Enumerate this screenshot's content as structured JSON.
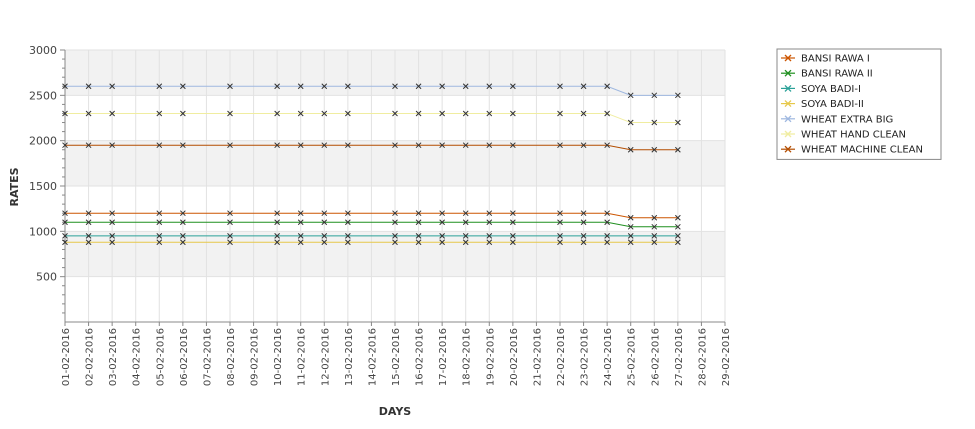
{
  "chart_data": {
    "type": "line",
    "title": "",
    "xlabel": "DAYS",
    "ylabel": "RATES",
    "ylim": [
      0,
      3000
    ],
    "yticks": [
      500,
      1000,
      1500,
      2000,
      2500,
      3000
    ],
    "x_ticks": [
      "01-02-2016",
      "02-02-2016",
      "03-02-2016",
      "04-02-2016",
      "05-02-2016",
      "06-02-2016",
      "07-02-2016",
      "08-02-2016",
      "09-02-2016",
      "10-02-2016",
      "11-02-2016",
      "12-02-2016",
      "13-02-2016",
      "14-02-2016",
      "15-02-2016",
      "16-02-2016",
      "17-02-2016",
      "18-02-2016",
      "19-02-2016",
      "20-02-2016",
      "21-02-2016",
      "22-02-2016",
      "23-02-2016",
      "24-02-2016",
      "25-02-2016",
      "26-02-2016",
      "27-02-2016",
      "28-02-2016",
      "29-02-2016"
    ],
    "x": [
      "01-02-2016",
      "02-02-2016",
      "03-02-2016",
      "05-02-2016",
      "06-02-2016",
      "08-02-2016",
      "10-02-2016",
      "11-02-2016",
      "12-02-2016",
      "13-02-2016",
      "15-02-2016",
      "16-02-2016",
      "17-02-2016",
      "18-02-2016",
      "19-02-2016",
      "20-02-2016",
      "22-02-2016",
      "23-02-2016",
      "24-02-2016",
      "25-02-2016",
      "26-02-2016",
      "27-02-2016"
    ],
    "grid": true,
    "legend_position": "right",
    "series": [
      {
        "name": "BANSI RAWA I",
        "color": "#cc5500",
        "values": [
          1200,
          1200,
          1200,
          1200,
          1200,
          1200,
          1200,
          1200,
          1200,
          1200,
          1200,
          1200,
          1200,
          1200,
          1200,
          1200,
          1200,
          1200,
          1200,
          1150,
          1150,
          1150
        ]
      },
      {
        "name": "BANSI RAWA II",
        "color": "#1f8f1f",
        "values": [
          1100,
          1100,
          1100,
          1100,
          1100,
          1100,
          1100,
          1100,
          1100,
          1100,
          1100,
          1100,
          1100,
          1100,
          1100,
          1100,
          1100,
          1100,
          1100,
          1050,
          1050,
          1050
        ]
      },
      {
        "name": "SOYA BADI-I",
        "color": "#2aa198",
        "values": [
          950,
          950,
          950,
          950,
          950,
          950,
          950,
          950,
          950,
          950,
          950,
          950,
          950,
          950,
          950,
          950,
          950,
          950,
          950,
          950,
          950,
          950
        ]
      },
      {
        "name": "SOYA BADI-II",
        "color": "#e6c84a",
        "values": [
          880,
          880,
          880,
          880,
          880,
          880,
          880,
          880,
          880,
          880,
          880,
          880,
          880,
          880,
          880,
          880,
          880,
          880,
          880,
          880,
          880,
          880
        ]
      },
      {
        "name": "WHEAT EXTRA BIG",
        "color": "#9fb8e0",
        "values": [
          2600,
          2600,
          2600,
          2600,
          2600,
          2600,
          2600,
          2600,
          2600,
          2600,
          2600,
          2600,
          2600,
          2600,
          2600,
          2600,
          2600,
          2600,
          2600,
          2500,
          2500,
          2500
        ]
      },
      {
        "name": "WHEAT HAND CLEAN",
        "color": "#f0eda0",
        "values": [
          2300,
          2300,
          2300,
          2300,
          2300,
          2300,
          2300,
          2300,
          2300,
          2300,
          2300,
          2300,
          2300,
          2300,
          2300,
          2300,
          2300,
          2300,
          2300,
          2200,
          2200,
          2200
        ]
      },
      {
        "name": "WHEAT MACHINE CLEAN",
        "color": "#b34d00",
        "values": [
          1950,
          1950,
          1950,
          1950,
          1950,
          1950,
          1950,
          1950,
          1950,
          1950,
          1950,
          1950,
          1950,
          1950,
          1950,
          1950,
          1950,
          1950,
          1950,
          1900,
          1900,
          1900
        ]
      }
    ]
  }
}
